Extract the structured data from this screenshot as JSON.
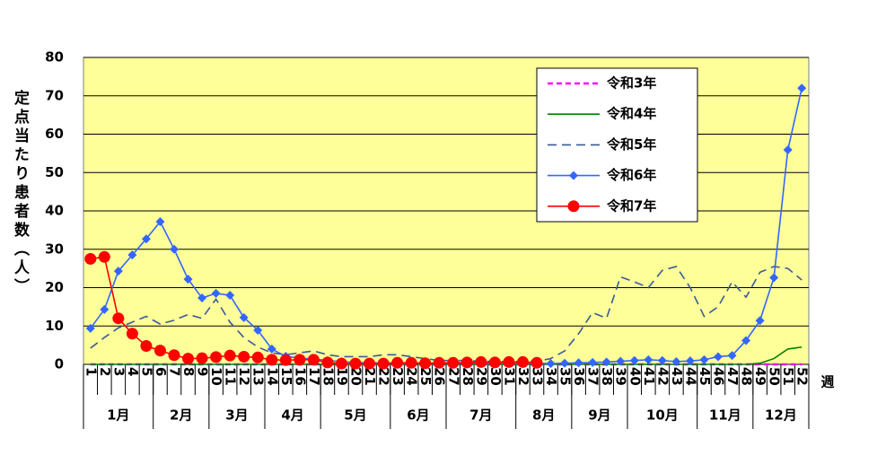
{
  "chart_data": {
    "type": "line",
    "y_label": "定点当たり患者数（人）",
    "x_label": "週",
    "categories": [
      "1",
      "2",
      "3",
      "4",
      "5",
      "6",
      "7",
      "8",
      "9",
      "10",
      "11",
      "12",
      "13",
      "14",
      "15",
      "16",
      "17",
      "18",
      "19",
      "20",
      "21",
      "22",
      "23",
      "24",
      "25",
      "26",
      "27",
      "28",
      "29",
      "30",
      "31",
      "32",
      "33",
      "34",
      "35",
      "36",
      "37",
      "38",
      "39",
      "40",
      "41",
      "42",
      "43",
      "44",
      "45",
      "46",
      "47",
      "48",
      "49",
      "50",
      "51",
      "52"
    ],
    "month_groups": [
      {
        "label": "1月",
        "weeks": 5
      },
      {
        "label": "2月",
        "weeks": 4
      },
      {
        "label": "3月",
        "weeks": 4
      },
      {
        "label": "4月",
        "weeks": 4
      },
      {
        "label": "5月",
        "weeks": 5
      },
      {
        "label": "6月",
        "weeks": 4
      },
      {
        "label": "7月",
        "weeks": 5
      },
      {
        "label": "8月",
        "weeks": 4
      },
      {
        "label": "9月",
        "weeks": 4
      },
      {
        "label": "10月",
        "weeks": 5
      },
      {
        "label": "11月",
        "weeks": 4
      },
      {
        "label": "12月",
        "weeks": 4
      }
    ],
    "ylim": [
      0,
      80
    ],
    "yticks": [
      0,
      10,
      20,
      30,
      40,
      50,
      60,
      70,
      80
    ],
    "grid": true,
    "legend": "upper-right",
    "series": [
      {
        "name": "令和3年",
        "color": "#ff00ff",
        "line_style": "dashed",
        "marker": "none",
        "values": [
          0,
          0,
          0,
          0,
          0,
          0,
          0,
          0,
          0,
          0,
          0,
          0,
          0,
          0,
          0,
          0,
          0,
          0,
          0,
          0,
          0,
          0,
          0,
          0,
          0,
          0,
          0,
          0,
          0,
          0,
          0,
          0,
          0,
          0,
          0,
          0,
          0,
          0,
          0,
          0,
          0,
          0,
          0,
          0,
          0,
          0,
          0,
          0,
          0,
          0,
          0,
          0
        ]
      },
      {
        "name": "令和4年",
        "color": "#008000",
        "line_style": "solid",
        "marker": "none",
        "values": [
          0,
          0,
          0,
          0,
          0,
          0,
          0,
          0,
          0,
          0,
          0,
          0,
          0,
          0,
          0,
          0,
          0,
          0,
          0,
          0,
          0,
          0,
          0,
          0,
          0,
          0,
          0,
          0,
          0,
          0,
          0,
          0,
          0,
          0,
          0,
          0,
          0,
          0,
          0,
          0,
          0,
          0,
          0,
          0,
          0,
          0,
          0,
          0,
          0.3,
          1.5,
          4,
          4.5
        ]
      },
      {
        "name": "令和5年",
        "color": "#3a5a9a",
        "line_style": "longdash",
        "marker": "none",
        "values": [
          4.2,
          7,
          9.5,
          11,
          12.5,
          10.5,
          11.5,
          13,
          12,
          17,
          11,
          7,
          4.5,
          3,
          2.5,
          3,
          3.5,
          2.5,
          2,
          2,
          2,
          2.5,
          2.5,
          2,
          1.5,
          1,
          1,
          1,
          0.8,
          0.8,
          0.7,
          0.8,
          0.8,
          1.5,
          3.5,
          8,
          13.5,
          12,
          22.8,
          21.5,
          20,
          24.5,
          25.5,
          20,
          12.5,
          15,
          21.5,
          17.5,
          24,
          25.5,
          25,
          22
        ]
      },
      {
        "name": "令和6年",
        "color": "#3366ff",
        "line_style": "solid",
        "marker": "diamond",
        "values": [
          9.4,
          14.3,
          24.3,
          28.5,
          32.7,
          37.2,
          30,
          22.2,
          17.3,
          18.5,
          18,
          12.2,
          8.9,
          4,
          2.1,
          1.6,
          1.4,
          1,
          0.7,
          0.5,
          0.4,
          0.4,
          0.4,
          0.3,
          0.3,
          0.3,
          0.3,
          0.3,
          0.3,
          0.3,
          0.3,
          0.3,
          0.3,
          0.2,
          0.3,
          0.4,
          0.5,
          0.6,
          0.8,
          1,
          1.2,
          1,
          0.7,
          0.9,
          1.2,
          2,
          2.3,
          6.2,
          11.4,
          22.6,
          55.9,
          72
        ]
      },
      {
        "name": "令和7年",
        "color": "#ff0000",
        "line_style": "solid",
        "marker": "circle",
        "values": [
          27.5,
          28,
          12,
          8,
          4.8,
          3.6,
          2.4,
          1.5,
          1.6,
          1.9,
          2.3,
          2,
          1.8,
          1.2,
          1.1,
          1.2,
          1.2,
          0.5,
          0.2,
          0.2,
          0.2,
          0.2,
          0.4,
          0.4,
          0.3,
          0.4,
          0.4,
          0.5,
          0.6,
          0.5,
          0.6,
          0.6,
          0.4,
          null,
          null,
          null,
          null,
          null,
          null,
          null,
          null,
          null,
          null,
          null,
          null,
          null,
          null,
          null,
          null,
          null,
          null,
          null
        ]
      }
    ]
  }
}
